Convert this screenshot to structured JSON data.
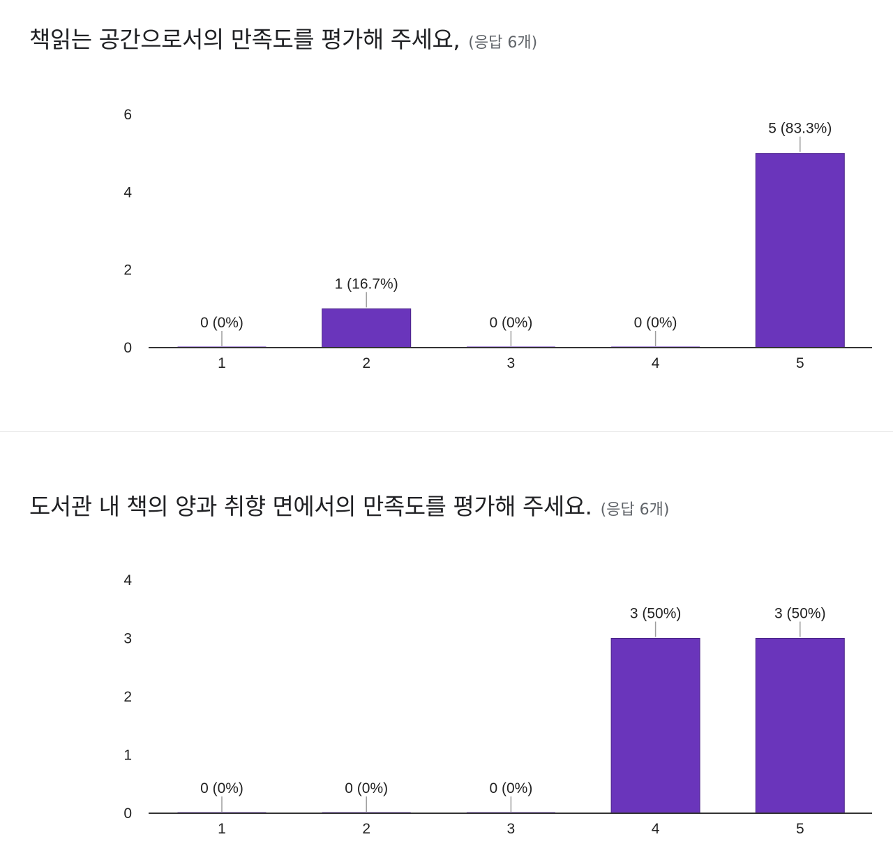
{
  "questions": [
    {
      "title": "책읽는 공간으로서의 만족도를 평가해 주세요,",
      "response_count": "(응답 6개)",
      "chart_data": {
        "type": "bar",
        "categories": [
          "1",
          "2",
          "3",
          "4",
          "5"
        ],
        "values": [
          0,
          1,
          0,
          0,
          5
        ],
        "data_labels": [
          "0 (0%)",
          "1 (16.7%)",
          "0 (0%)",
          "0 (0%)",
          "5 (83.3%)"
        ],
        "yticks": [
          "0",
          "2",
          "4",
          "6"
        ],
        "ylim": [
          0,
          6
        ],
        "bar_color": "#6a35bb",
        "grid": false,
        "legend": "none"
      }
    },
    {
      "title": "도서관 내 책의 양과 취향 면에서의 만족도를 평가해 주세요.",
      "response_count": "(응답 6개)",
      "chart_data": {
        "type": "bar",
        "categories": [
          "1",
          "2",
          "3",
          "4",
          "5"
        ],
        "values": [
          0,
          0,
          0,
          3,
          3
        ],
        "data_labels": [
          "0 (0%)",
          "0 (0%)",
          "0 (0%)",
          "3 (50%)",
          "3 (50%)"
        ],
        "yticks": [
          "0",
          "1",
          "2",
          "3",
          "4"
        ],
        "ylim": [
          0,
          4
        ],
        "bar_color": "#6a35bb",
        "grid": false,
        "legend": "none"
      }
    }
  ]
}
